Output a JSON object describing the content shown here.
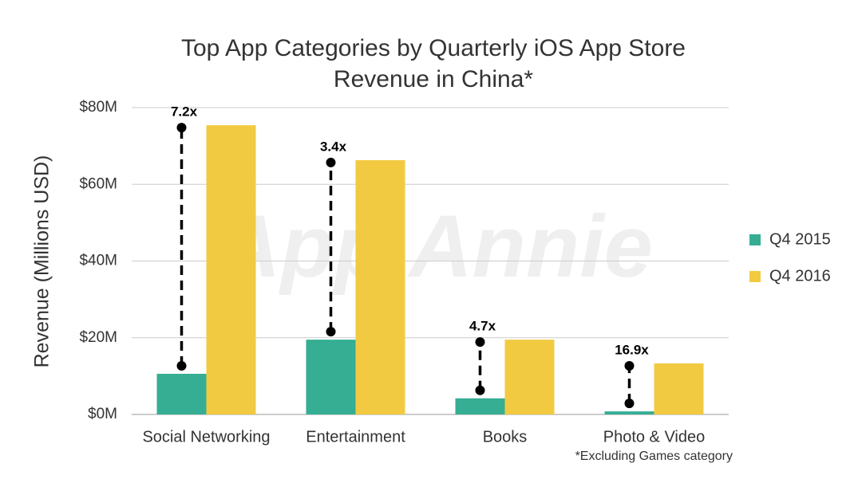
{
  "chart_data": {
    "type": "bar",
    "title": [
      "Top App Categories by Quarterly iOS App Store",
      "Revenue in China*"
    ],
    "y_label": "Revenue (Millions USD)",
    "categories": [
      "Social Networking",
      "Entertainment",
      "Books",
      "Photo & Video"
    ],
    "series": [
      {
        "name": "Q4 2015",
        "color": "#35ae94",
        "values": [
          10.6,
          19.5,
          4.2,
          0.8
        ]
      },
      {
        "name": "Q4 2016",
        "color": "#f2ca41",
        "values": [
          75.4,
          66.3,
          19.5,
          13.3
        ]
      }
    ],
    "annotations": [
      "7.2x",
      "3.4x",
      "4.7x",
      "16.9x"
    ],
    "ylim": [
      0,
      80
    ],
    "yticks": [
      {
        "value": 0,
        "label": "$0M"
      },
      {
        "value": 20,
        "label": "$20M"
      },
      {
        "value": 40,
        "label": "$40M"
      },
      {
        "value": 60,
        "label": "$60M"
      },
      {
        "value": 80,
        "label": "$80M"
      }
    ],
    "grid": true,
    "legend": "right",
    "watermark": "App Annie",
    "footnote": "*Excluding Games category"
  }
}
